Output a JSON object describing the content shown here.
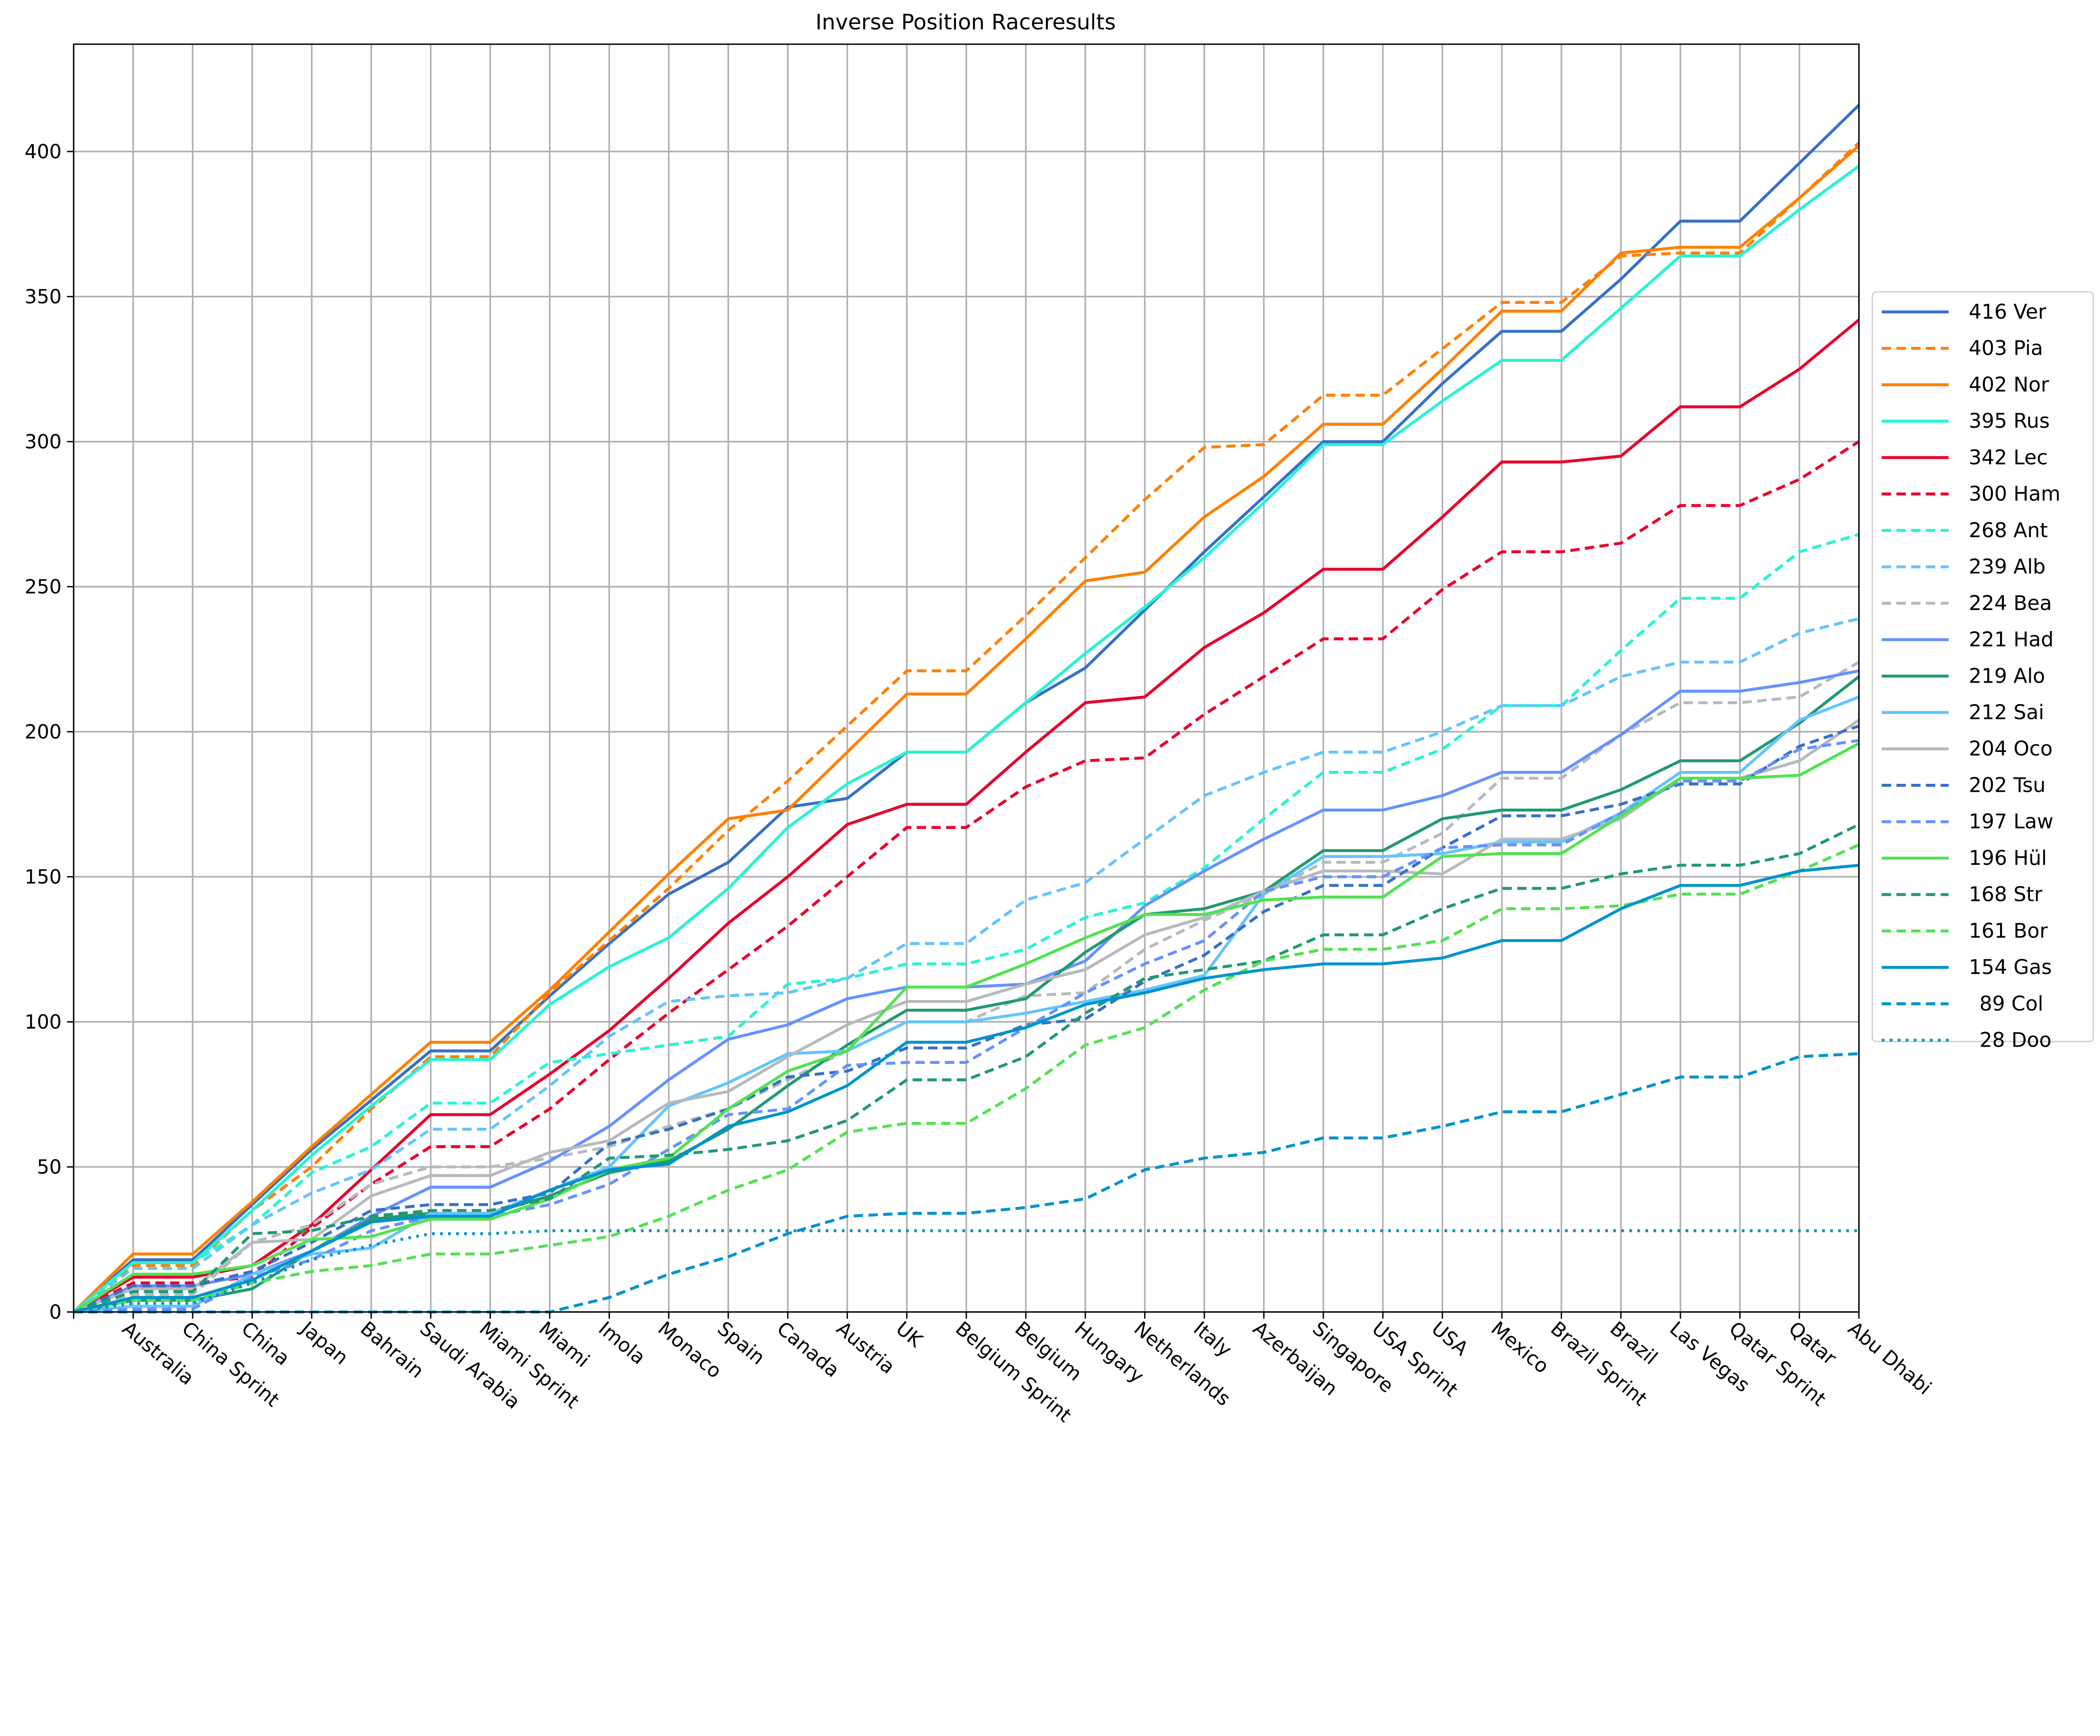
{
  "chart_data": {
    "type": "line",
    "title": "Inverse Position Raceresults",
    "xlabel": "",
    "ylabel": "",
    "ylim": [
      0,
      437
    ],
    "yticks": [
      0,
      50,
      100,
      150,
      200,
      250,
      300,
      350,
      400
    ],
    "grid": true,
    "legend_position": "right",
    "categories": [
      "",
      "Australia",
      "China Sprint",
      "China",
      "Japan",
      "Bahrain",
      "Saudi Arabia",
      "Miami Sprint",
      "Miami",
      "Imola",
      "Monaco",
      "Spain",
      "Canada",
      "Austria",
      "UK",
      "Belgium Sprint",
      "Belgium",
      "Hungary",
      "Netherlands",
      "Italy",
      "Azerbaijan",
      "Singapore",
      "USA Sprint",
      "USA",
      "Mexico",
      "Brazil Sprint",
      "Brazil",
      "Las Vegas",
      "Qatar Sprint",
      "Qatar",
      "Abu Dhabi"
    ],
    "series": [
      {
        "name": "416 Ver",
        "color": "#3671c6",
        "style": "solid",
        "values": [
          0,
          18,
          18,
          37,
          56,
          73,
          90,
          90,
          109,
          127,
          144,
          155,
          174,
          177,
          193,
          193,
          210,
          222,
          242,
          262,
          281,
          300,
          300,
          320,
          338,
          338,
          356,
          376,
          376,
          396,
          416
        ]
      },
      {
        "name": "403 Pia",
        "color": "#ff8000",
        "style": "dashed",
        "values": [
          0,
          16,
          16,
          35,
          50,
          70,
          88,
          88,
          110,
          128,
          146,
          166,
          183,
          202,
          221,
          221,
          240,
          260,
          280,
          298,
          299,
          316,
          316,
          332,
          348,
          348,
          364,
          365,
          365,
          384,
          403
        ]
      },
      {
        "name": "402 Nor",
        "color": "#ff8000",
        "style": "solid",
        "values": [
          0,
          20,
          20,
          38,
          57,
          75,
          93,
          93,
          111,
          131,
          151,
          170,
          173,
          193,
          213,
          213,
          232,
          252,
          255,
          274,
          288,
          306,
          306,
          325,
          345,
          345,
          365,
          367,
          367,
          384,
          402
        ]
      },
      {
        "name": "395 Rus",
        "color": "#27f4d2",
        "style": "solid",
        "values": [
          0,
          17,
          17,
          35,
          54,
          71,
          87,
          87,
          106,
          119,
          129,
          146,
          167,
          182,
          193,
          193,
          210,
          227,
          243,
          260,
          279,
          299,
          299,
          314,
          328,
          328,
          346,
          364,
          364,
          380,
          395
        ]
      },
      {
        "name": "342 Lec",
        "color": "#e8002d",
        "style": "solid",
        "values": [
          0,
          12,
          12,
          16,
          30,
          49,
          68,
          68,
          82,
          97,
          115,
          134,
          150,
          168,
          175,
          175,
          193,
          210,
          212,
          229,
          241,
          256,
          256,
          274,
          293,
          293,
          295,
          312,
          312,
          325,
          342
        ]
      },
      {
        "name": "300 Ham",
        "color": "#e8002d",
        "style": "dashed",
        "values": [
          0,
          10,
          10,
          12,
          29,
          44,
          57,
          57,
          70,
          87,
          103,
          118,
          133,
          150,
          167,
          167,
          181,
          190,
          191,
          206,
          219,
          232,
          232,
          249,
          262,
          262,
          265,
          278,
          278,
          287,
          300
        ]
      },
      {
        "name": "268 Ant",
        "color": "#27f4d2",
        "style": "dashed",
        "values": [
          0,
          17,
          17,
          30,
          48,
          57,
          72,
          72,
          86,
          89,
          92,
          95,
          113,
          115,
          120,
          120,
          125,
          136,
          141,
          153,
          170,
          186,
          186,
          194,
          209,
          209,
          228,
          246,
          246,
          262,
          268
        ]
      },
      {
        "name": "239 Alb",
        "color": "#64c4ff",
        "style": "dashed",
        "values": [
          0,
          15,
          15,
          30,
          41,
          49,
          63,
          63,
          78,
          95,
          107,
          109,
          110,
          115,
          127,
          127,
          142,
          148,
          163,
          178,
          186,
          193,
          193,
          200,
          209,
          209,
          219,
          224,
          224,
          234,
          239
        ]
      },
      {
        "name": "224 Bea",
        "color": "#b6babd",
        "style": "dashed",
        "values": [
          0,
          6,
          6,
          24,
          30,
          44,
          50,
          50,
          53,
          57,
          64,
          70,
          80,
          90,
          100,
          100,
          109,
          110,
          125,
          135,
          144,
          155,
          155,
          165,
          184,
          184,
          199,
          210,
          210,
          212,
          224
        ]
      },
      {
        "name": "221 Had",
        "color": "#6692ff",
        "style": "solid",
        "values": [
          0,
          9,
          9,
          13,
          21,
          33,
          43,
          43,
          52,
          64,
          80,
          94,
          99,
          108,
          112,
          112,
          113,
          121,
          140,
          152,
          163,
          173,
          173,
          178,
          186,
          186,
          199,
          214,
          214,
          217,
          221
        ]
      },
      {
        "name": "219 Alo",
        "color": "#229971",
        "style": "solid",
        "values": [
          0,
          4,
          4,
          8,
          21,
          32,
          34,
          34,
          40,
          48,
          52,
          63,
          78,
          92,
          104,
          104,
          108,
          124,
          137,
          139,
          145,
          159,
          159,
          170,
          173,
          173,
          180,
          190,
          190,
          203,
          219
        ]
      },
      {
        "name": "212 Sai",
        "color": "#64c4ff",
        "style": "solid",
        "values": [
          0,
          2,
          2,
          13,
          20,
          22,
          34,
          34,
          42,
          50,
          71,
          79,
          89,
          90,
          100,
          100,
          103,
          107,
          111,
          116,
          144,
          157,
          157,
          158,
          162,
          162,
          172,
          186,
          186,
          204,
          212
        ]
      },
      {
        "name": "204 Oco",
        "color": "#b6babd",
        "style": "solid",
        "values": [
          0,
          8,
          8,
          24,
          25,
          40,
          47,
          47,
          55,
          59,
          72,
          76,
          88,
          99,
          107,
          107,
          113,
          118,
          130,
          136,
          145,
          152,
          152,
          151,
          163,
          163,
          170,
          184,
          184,
          190,
          204
        ]
      },
      {
        "name": "202 Tsu",
        "color": "#3671c6",
        "style": "dashed",
        "values": [
          0,
          9,
          9,
          14,
          24,
          35,
          37,
          37,
          41,
          58,
          63,
          70,
          81,
          83,
          91,
          91,
          99,
          101,
          114,
          123,
          138,
          147,
          147,
          160,
          171,
          171,
          175,
          182,
          182,
          195,
          202
        ]
      },
      {
        "name": "197 Law",
        "color": "#6692ff",
        "style": "dashed",
        "values": [
          0,
          1,
          1,
          12,
          18,
          28,
          33,
          33,
          37,
          44,
          56,
          68,
          70,
          85,
          86,
          86,
          98,
          110,
          120,
          128,
          145,
          150,
          150,
          160,
          161,
          161,
          172,
          183,
          183,
          194,
          197
        ]
      },
      {
        "name": "196 Hül",
        "color": "#52e252",
        "style": "solid",
        "values": [
          0,
          13,
          13,
          16,
          25,
          26,
          32,
          32,
          39,
          49,
          53,
          70,
          83,
          90,
          112,
          112,
          120,
          129,
          137,
          137,
          142,
          143,
          143,
          157,
          158,
          158,
          171,
          184,
          184,
          185,
          196
        ]
      },
      {
        "name": "168 Str",
        "color": "#229971",
        "style": "dashed",
        "values": [
          0,
          7,
          7,
          27,
          28,
          33,
          35,
          35,
          39,
          53,
          54,
          56,
          59,
          66,
          80,
          80,
          88,
          103,
          115,
          118,
          121,
          130,
          130,
          139,
          146,
          146,
          151,
          154,
          154,
          158,
          168
        ]
      },
      {
        "name": "161 Bor",
        "color": "#52e252",
        "style": "dashed",
        "values": [
          0,
          4,
          4,
          10,
          14,
          16,
          20,
          20,
          23,
          26,
          33,
          42,
          49,
          62,
          65,
          65,
          77,
          92,
          98,
          111,
          121,
          125,
          125,
          128,
          139,
          139,
          140,
          144,
          144,
          152,
          161
        ]
      },
      {
        "name": "154 Gas",
        "color": "#0093cc",
        "style": "solid",
        "values": [
          0,
          5,
          5,
          11,
          21,
          31,
          33,
          33,
          42,
          49,
          51,
          64,
          69,
          78,
          93,
          93,
          98,
          106,
          110,
          115,
          118,
          120,
          120,
          122,
          128,
          128,
          139,
          147,
          147,
          152,
          154
        ]
      },
      {
        "name": "89 Col",
        "color": "#0093cc",
        "style": "dashed",
        "values": [
          0,
          0,
          0,
          0,
          0,
          0,
          0,
          0,
          0,
          5,
          13,
          19,
          27,
          33,
          34,
          34,
          36,
          39,
          49,
          53,
          55,
          60,
          60,
          64,
          69,
          69,
          75,
          81,
          81,
          88,
          89
        ]
      },
      {
        "name": "28 Doo",
        "color": "#0093cc",
        "style": "dotted",
        "values": [
          0,
          3,
          3,
          10,
          18,
          23,
          27,
          27,
          28,
          28,
          28,
          28,
          28,
          28,
          28,
          28,
          28,
          28,
          28,
          28,
          28,
          28,
          28,
          28,
          28,
          28,
          28,
          28,
          28,
          28,
          28
        ]
      }
    ]
  }
}
